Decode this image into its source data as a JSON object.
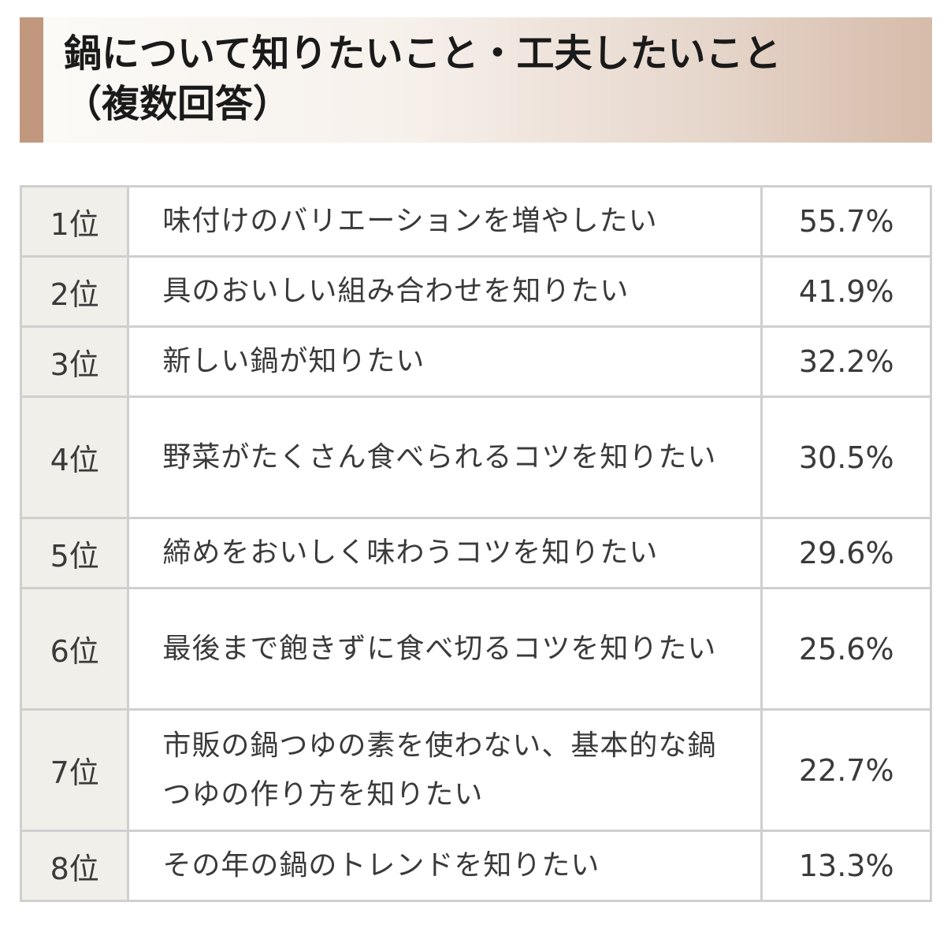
{
  "header": {
    "title_line1": "鍋について知りたいこと・工夫したいこと",
    "title_line2": "（複数回答）",
    "accent_color": "#c1977e"
  },
  "table": {
    "rows": [
      {
        "rank": "1位",
        "item": "味付けのバリエーションを増やしたい",
        "percent": "55.7%"
      },
      {
        "rank": "2位",
        "item": "具のおいしい組み合わせを知りたい",
        "percent": "41.9%"
      },
      {
        "rank": "3位",
        "item": "新しい鍋が知りたい",
        "percent": "32.2%"
      },
      {
        "rank": "4位",
        "item": "野菜がたくさん食べられるコツを知りたい",
        "percent": "30.5%"
      },
      {
        "rank": "5位",
        "item": "締めをおいしく味わうコツを知りたい",
        "percent": "29.6%"
      },
      {
        "rank": "6位",
        "item": "最後まで飽きずに食べ切るコツを知りたい",
        "percent": "25.6%"
      },
      {
        "rank": "7位",
        "item": "市販の鍋つゆの素を使わない、基本的な鍋つゆの作り方を知りたい",
        "percent": "22.7%"
      },
      {
        "rank": "8位",
        "item": "その年の鍋のトレンドを知りたい",
        "percent": "13.3%"
      }
    ]
  }
}
